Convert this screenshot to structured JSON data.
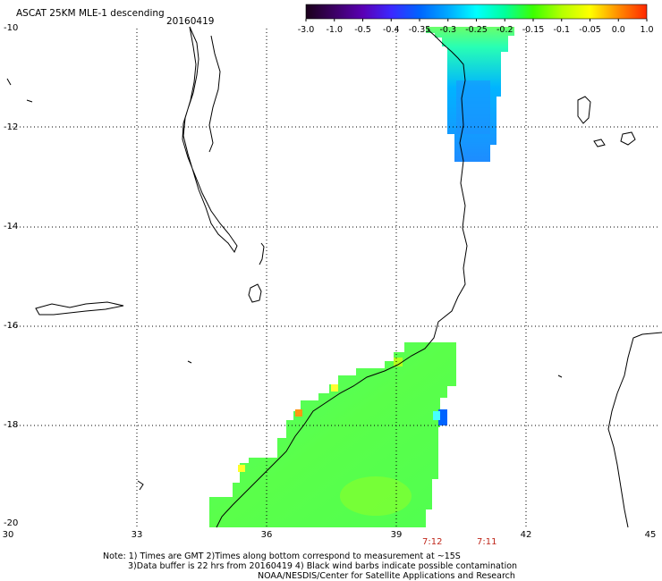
{
  "title": "ASCAT 25KM MLE-1 descending",
  "date": "20160419",
  "colorbar": {
    "labels": [
      "-3.0",
      "-1.0",
      "-0.5",
      "-0.4",
      "-0.35",
      "-0.3",
      "-0.25",
      "-0.2",
      "-0.15",
      "-0.1",
      "-0.05",
      "0.0",
      "1.0"
    ],
    "colors": [
      "#1a001a",
      "#3c0064",
      "#5a00b4",
      "#3c28ff",
      "#0064ff",
      "#00aaff",
      "#00ffff",
      "#00ff9c",
      "#3cff00",
      "#b4ff00",
      "#ffff00",
      "#ff8c00",
      "#ff2800"
    ]
  },
  "axes": {
    "lat_ticks": [
      "-10",
      "-12",
      "-14",
      "-16",
      "-18",
      "-20"
    ],
    "lon_ticks": [
      "30",
      "33",
      "36",
      "39",
      "42",
      "45"
    ]
  },
  "pass_times": [
    "7:12",
    "7:11"
  ],
  "notes": [
    "Note: 1) Times are GMT 2)Times along bottom correspond to measurement at ~15S",
    "3)Data buffer is 22 hrs from 20160419 4) Black wind barbs indicate possible contamination",
    "NOAA/NESDIS/Center for Satellite Applications and Research"
  ],
  "swath_colors": {
    "north_top": "#46ff8c",
    "north_bottom": "#1e90ff",
    "south": "#52ff52"
  }
}
